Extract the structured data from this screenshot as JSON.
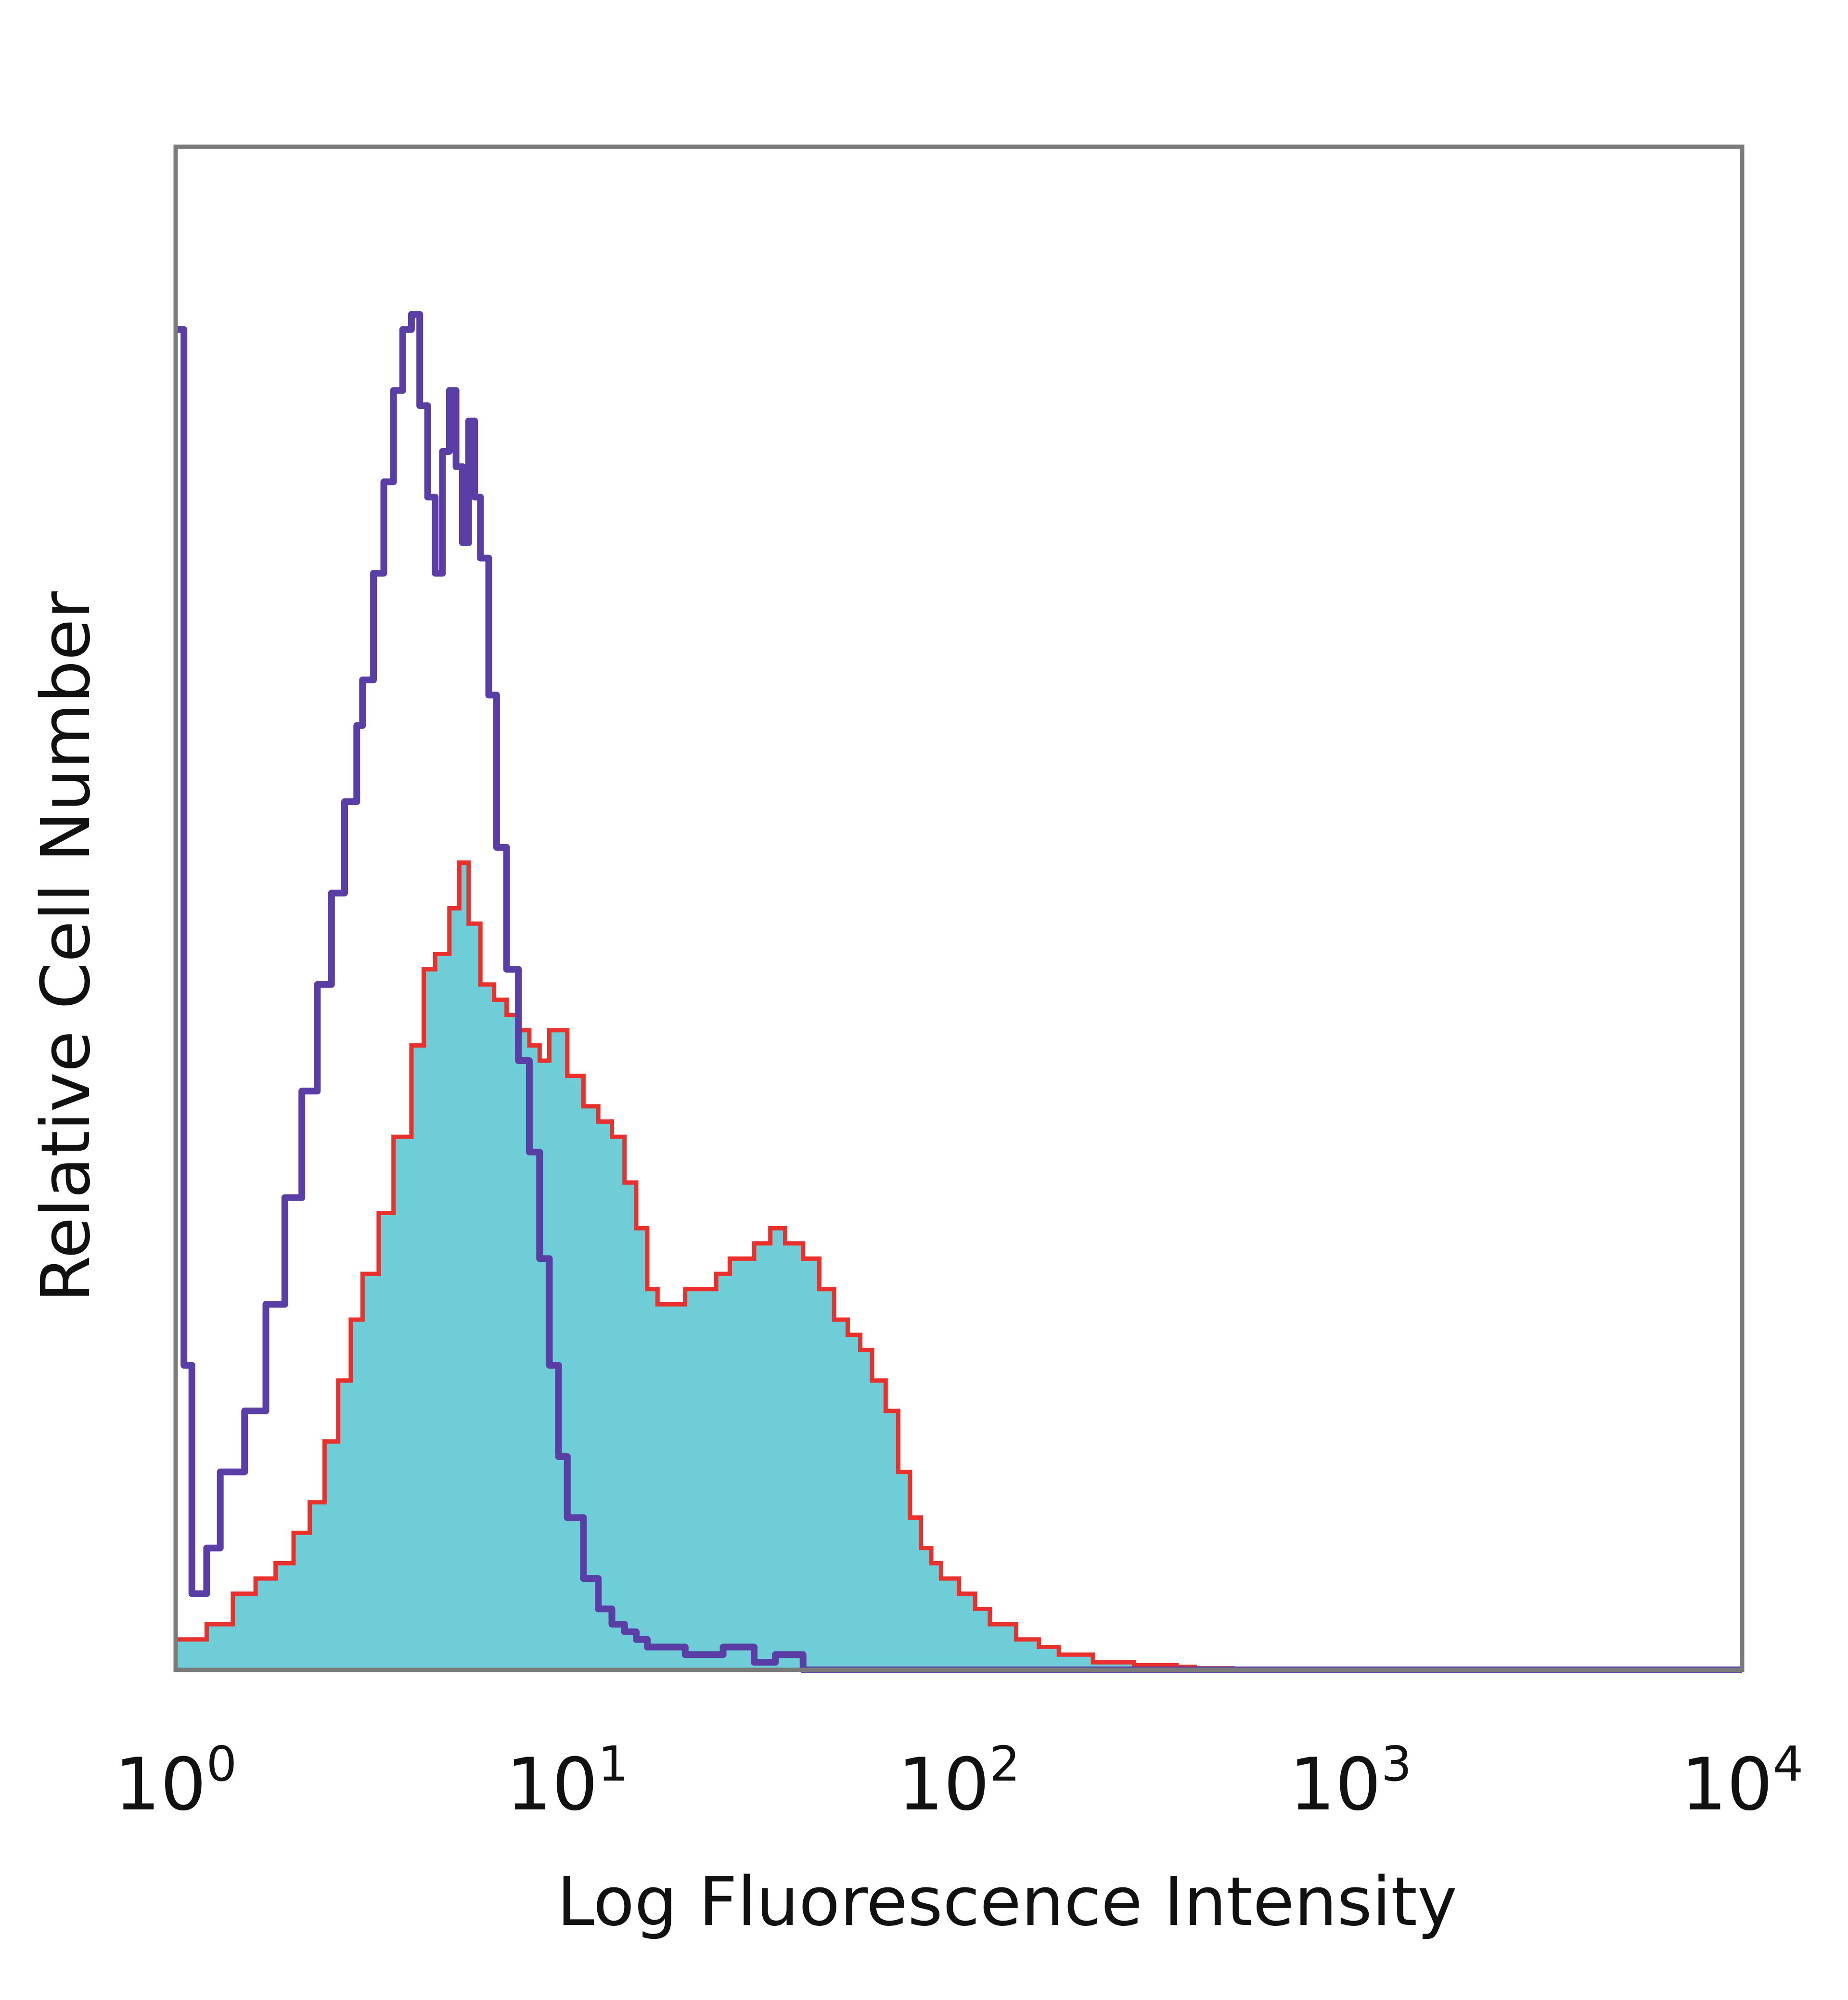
{
  "chart_data": {
    "type": "area",
    "xlabel": "Log Fluorescence Intensity",
    "ylabel": "Relative Cell Number",
    "x_scale": "log",
    "xlim": [
      1,
      10000
    ],
    "ylim": [
      0,
      100
    ],
    "x_ticks": [
      {
        "value": 1,
        "base": "10",
        "exp": "0"
      },
      {
        "value": 10,
        "base": "10",
        "exp": "1"
      },
      {
        "value": 100,
        "base": "10",
        "exp": "2"
      },
      {
        "value": 1000,
        "base": "10",
        "exp": "3"
      },
      {
        "value": 10000,
        "base": "10",
        "exp": "4"
      }
    ],
    "y_ticks_shown": false,
    "grid": false,
    "legend": "none",
    "series": [
      {
        "style": "filled",
        "fill_color": "#6fcdd8",
        "outline_color": "#e8302c",
        "x": [
          1.0,
          1.2,
          1.4,
          1.6,
          1.8,
          2.0,
          2.2,
          2.4,
          2.6,
          2.8,
          3.0,
          3.3,
          3.6,
          4.0,
          4.3,
          4.6,
          5.0,
          5.3,
          5.6,
          6.0,
          6.5,
          7.0,
          7.5,
          8.0,
          8.5,
          9.0,
          10,
          11,
          12,
          13,
          14,
          15,
          16,
          17,
          18,
          20,
          22,
          24,
          26,
          28,
          30,
          33,
          36,
          40,
          44,
          48,
          52,
          56,
          60,
          65,
          70,
          75,
          80,
          85,
          90,
          100,
          110,
          120,
          130,
          140,
          150,
          160,
          180,
          200,
          220,
          250,
          280,
          320,
          360,
          400,
          450,
          500,
          600,
          800,
          1000,
          10000
        ],
        "values": [
          2,
          3,
          5,
          6,
          7,
          9,
          11,
          15,
          19,
          23,
          26,
          30,
          35,
          41,
          46,
          47,
          50,
          53,
          49,
          45,
          44,
          43,
          42,
          41,
          40,
          42,
          39,
          37,
          36,
          35,
          32,
          29,
          25,
          24,
          24,
          25,
          25,
          26,
          27,
          27,
          28,
          29,
          28,
          27,
          25,
          23,
          22,
          21,
          19,
          17,
          13,
          10,
          8,
          7,
          6,
          5,
          4,
          3,
          3,
          2,
          2,
          1.5,
          1,
          1,
          0.5,
          0.5,
          0.3,
          0.3,
          0.2,
          0.1,
          0.1,
          0,
          0,
          0,
          0,
          0
        ]
      },
      {
        "style": "line",
        "line_color": "#5a3ea6",
        "x": [
          1.0,
          1.05,
          1.1,
          1.2,
          1.3,
          1.5,
          1.7,
          1.9,
          2.1,
          2.3,
          2.5,
          2.7,
          2.9,
          3.0,
          3.2,
          3.4,
          3.6,
          3.8,
          4.0,
          4.2,
          4.4,
          4.6,
          4.8,
          5.0,
          5.2,
          5.4,
          5.6,
          5.8,
          6.0,
          6.3,
          6.6,
          7.0,
          7.5,
          8.0,
          8.5,
          9.0,
          9.5,
          10,
          11,
          12,
          13,
          14,
          15,
          16,
          18,
          20,
          25,
          30,
          34,
          40,
          50,
          100,
          1000,
          10000
        ],
        "values": [
          88,
          20,
          5,
          8,
          13,
          17,
          24,
          31,
          38,
          45,
          51,
          57,
          62,
          65,
          72,
          78,
          84,
          88,
          89,
          83,
          77,
          72,
          80,
          84,
          79,
          74,
          82,
          77,
          73,
          64,
          54,
          46,
          40,
          34,
          27,
          20,
          14,
          10,
          6,
          4,
          3,
          2.5,
          2,
          1.5,
          1.5,
          1,
          1.5,
          0.5,
          1,
          0,
          0,
          0,
          0,
          0
        ]
      }
    ]
  }
}
